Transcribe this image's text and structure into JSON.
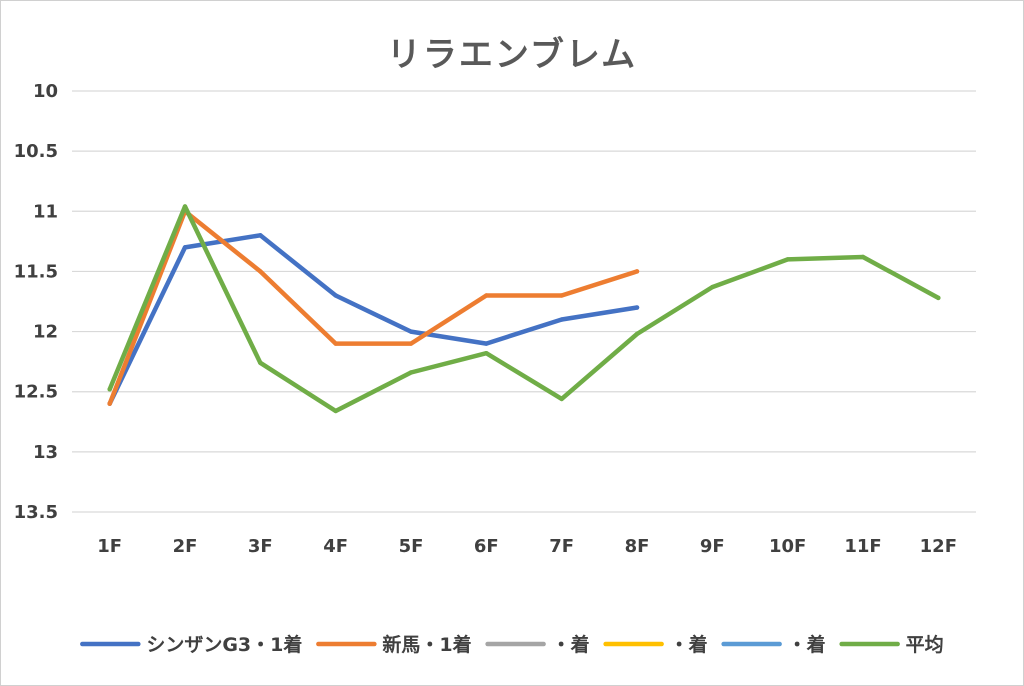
{
  "chart_data": {
    "type": "line",
    "title": "リラエンブレム",
    "categories": [
      "1F",
      "2F",
      "3F",
      "4F",
      "5F",
      "6F",
      "7F",
      "8F",
      "9F",
      "10F",
      "11F",
      "12F"
    ],
    "y_ticks": [
      "10",
      "10.5",
      "11",
      "11.5",
      "12",
      "12.5",
      "13",
      "13.5"
    ],
    "ylim": [
      10,
      13.5
    ],
    "y_reversed": true,
    "grid": true,
    "legend_position": "bottom",
    "series": [
      {
        "name": "シンザンG3・1着",
        "color": "#4472c4",
        "values": [
          12.6,
          11.3,
          11.2,
          11.7,
          12.0,
          12.1,
          11.9,
          11.8,
          null,
          null,
          null,
          null
        ]
      },
      {
        "name": "新馬・1着",
        "color": "#ed7d31",
        "values": [
          12.6,
          11.0,
          11.5,
          12.1,
          12.1,
          11.7,
          11.7,
          11.5,
          null,
          null,
          null,
          null
        ]
      },
      {
        "name": "・着",
        "color": "#a5a5a5",
        "values": [
          null,
          null,
          null,
          null,
          null,
          null,
          null,
          null,
          null,
          null,
          null,
          null
        ]
      },
      {
        "name": "・着",
        "color": "#ffc000",
        "values": [
          null,
          null,
          null,
          null,
          null,
          null,
          null,
          null,
          null,
          null,
          null,
          null
        ]
      },
      {
        "name": "・着",
        "color": "#5b9bd5",
        "values": [
          null,
          null,
          null,
          null,
          null,
          null,
          null,
          null,
          null,
          null,
          null,
          null
        ]
      },
      {
        "name": "平均",
        "color": "#70ad47",
        "values": [
          12.48,
          10.96,
          12.26,
          12.66,
          12.34,
          12.18,
          12.56,
          12.02,
          11.63,
          11.4,
          11.38,
          11.72
        ]
      }
    ]
  }
}
